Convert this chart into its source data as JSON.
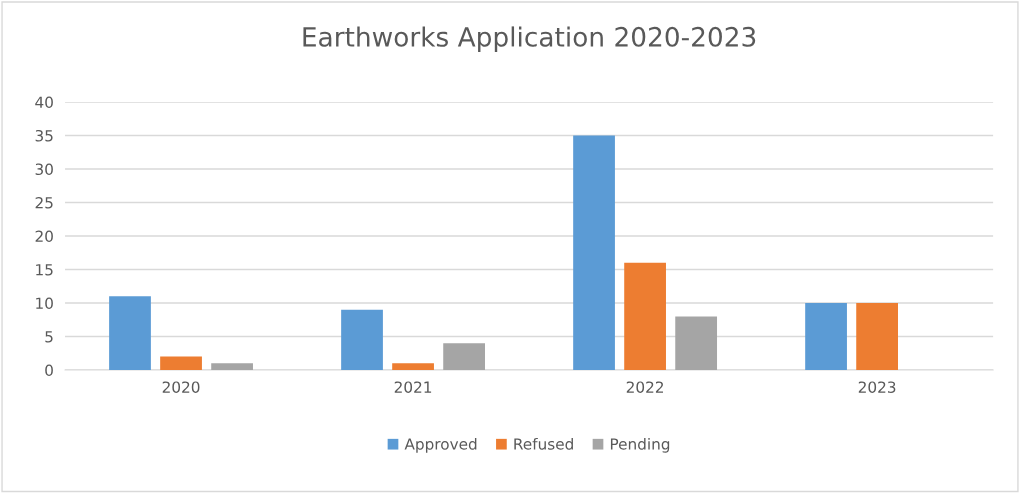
{
  "chart_data": {
    "type": "bar",
    "title": "Earthworks Application 2020-2023",
    "categories": [
      "2020",
      "2021",
      "2022",
      "2023"
    ],
    "series": [
      {
        "name": "Approved",
        "color": "#5b9bd5",
        "values": [
          11,
          9,
          35,
          10
        ]
      },
      {
        "name": "Refused",
        "color": "#ed7d31",
        "values": [
          2,
          1,
          16,
          10
        ]
      },
      {
        "name": "Pending",
        "color": "#a5a5a5",
        "values": [
          1,
          4,
          8,
          0
        ]
      }
    ],
    "ylim": [
      0,
      40
    ],
    "yticks": [
      0,
      5,
      10,
      15,
      20,
      25,
      30,
      35,
      40
    ],
    "grid": "y",
    "legend": "bottom"
  }
}
